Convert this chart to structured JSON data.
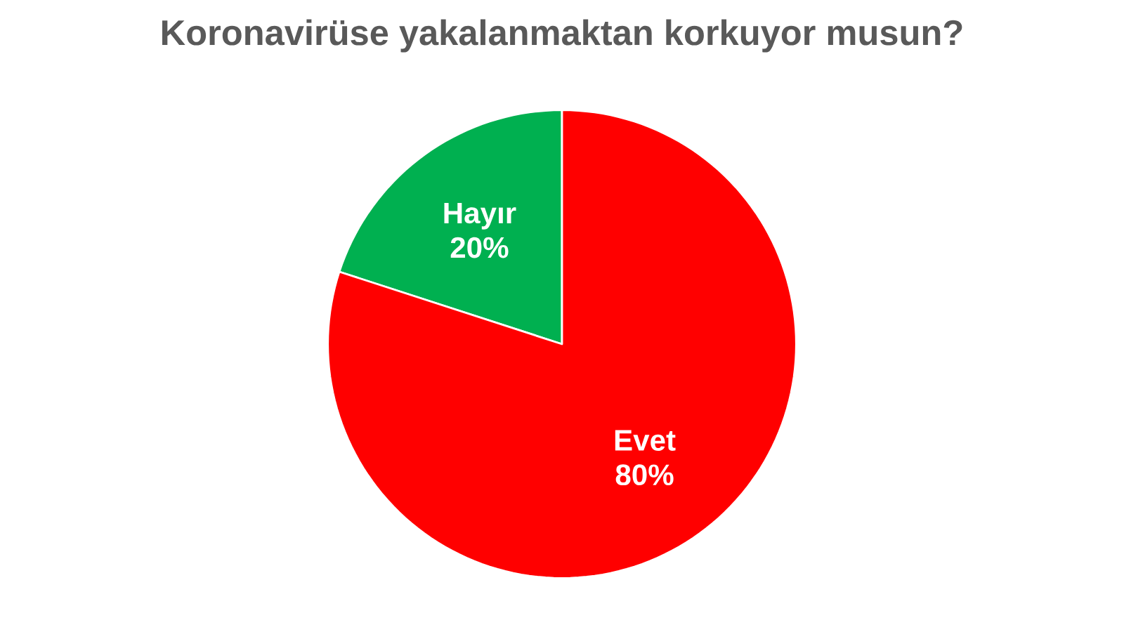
{
  "chart_data": {
    "type": "pie",
    "title": "Koronavirüse yakalanmaktan korkuyor musun?",
    "categories": [
      "Hayır",
      "Evet"
    ],
    "values": [
      20,
      80
    ],
    "value_labels": [
      "20%",
      "80%"
    ],
    "colors": [
      "#00b050",
      "#ff0000"
    ]
  }
}
